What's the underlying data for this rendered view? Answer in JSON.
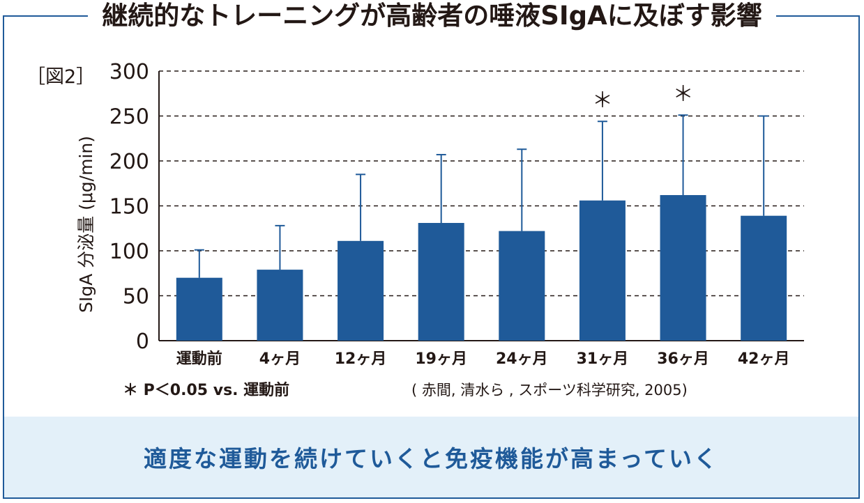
{
  "title": "継続的なトレーニングが高齢者の唾液SIgAに及ぼす影響",
  "figure_label": "［図2］",
  "note": "＊ P＜0.05 vs. 運動前",
  "source": "( 赤間,  清水ら , スポーツ科学研究,  2005)",
  "message": "適度な運動を続けていくと免疫機能が高まっていく",
  "colors": {
    "bar": "#1f5a99",
    "frame": "#1f5a99",
    "band": "#e3f0f9",
    "text": "#231815"
  },
  "chart_data": {
    "type": "bar",
    "title": "継続的なトレーニングが高齢者の唾液SIgAに及ぼす影響",
    "xlabel": "",
    "ylabel": "SIgA 分泌量 (μg/min)",
    "ylim": [
      0,
      300
    ],
    "yticks": [
      0,
      50,
      100,
      150,
      200,
      250,
      300
    ],
    "grid": "dashed horizontal",
    "categories": [
      "運動前",
      "4ヶ月",
      "12ヶ月",
      "19ヶ月",
      "24ヶ月",
      "31ヶ月",
      "36ヶ月",
      "42ヶ月"
    ],
    "values": [
      70,
      79,
      111,
      131,
      122,
      156,
      162,
      139
    ],
    "error_upper": [
      101,
      128,
      185,
      207,
      213,
      244,
      251,
      250
    ],
    "significant": [
      false,
      false,
      false,
      false,
      false,
      true,
      true,
      false
    ],
    "significance_marker": "＊"
  }
}
